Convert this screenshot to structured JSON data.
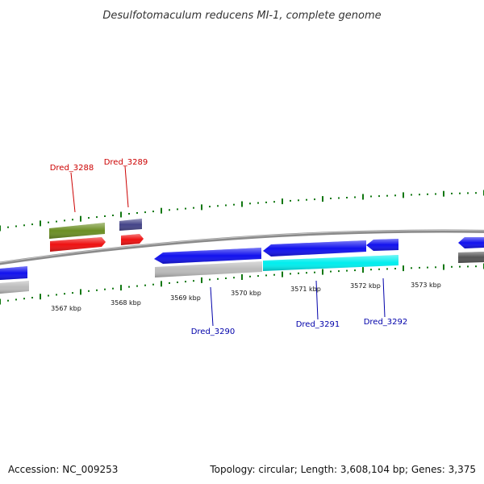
{
  "title": "Desulfotomaculum reducens MI-1, complete genome",
  "footer": {
    "accession": "Accession: NC_009253",
    "summary": "Topology: circular; Length: 3,608,104 bp; Genes: 3,375"
  },
  "colors": {
    "tick": "#117711",
    "backbone": "#888888",
    "label_top": "#cc0000",
    "label_bottom": "#0000aa"
  },
  "scale_labels": [
    "3567 kbp",
    "3568 kbp",
    "3569 kbp",
    "3570 kbp",
    "3571 kbp",
    "3572 kbp",
    "3573 kbp"
  ],
  "gene_labels": {
    "dred_3288": "Dred_3288",
    "dred_3289": "Dred_3289",
    "dred_3290": "Dred_3290",
    "dred_3291": "Dred_3291",
    "dred_3292": "Dred_3292"
  },
  "features": [
    {
      "id": "f-left-blue",
      "color": "#1111ee",
      "strand": "reverse"
    },
    {
      "id": "f-left-grey",
      "color": "#bbbbbb",
      "strand": "none"
    },
    {
      "id": "f-3288-olive",
      "color": "#6b8e23",
      "strand": "none"
    },
    {
      "id": "f-3288-red",
      "color": "#ee1111",
      "strand": "forward"
    },
    {
      "id": "f-3289-slate",
      "color": "#444488",
      "strand": "none"
    },
    {
      "id": "f-3289-red",
      "color": "#ee1111",
      "strand": "forward"
    },
    {
      "id": "f-3290-blue",
      "color": "#1111ee",
      "strand": "reverse"
    },
    {
      "id": "f-3290-grey",
      "color": "#bbbbbb",
      "strand": "none"
    },
    {
      "id": "f-3291-blue",
      "color": "#1111ee",
      "strand": "reverse"
    },
    {
      "id": "f-3291-cyan",
      "color": "#00eeee",
      "strand": "none"
    },
    {
      "id": "f-3292-blue",
      "color": "#1111ee",
      "strand": "reverse"
    },
    {
      "id": "f-right-blue",
      "color": "#1111ee",
      "strand": "reverse"
    },
    {
      "id": "f-right-dark",
      "color": "#555555",
      "strand": "none"
    }
  ]
}
